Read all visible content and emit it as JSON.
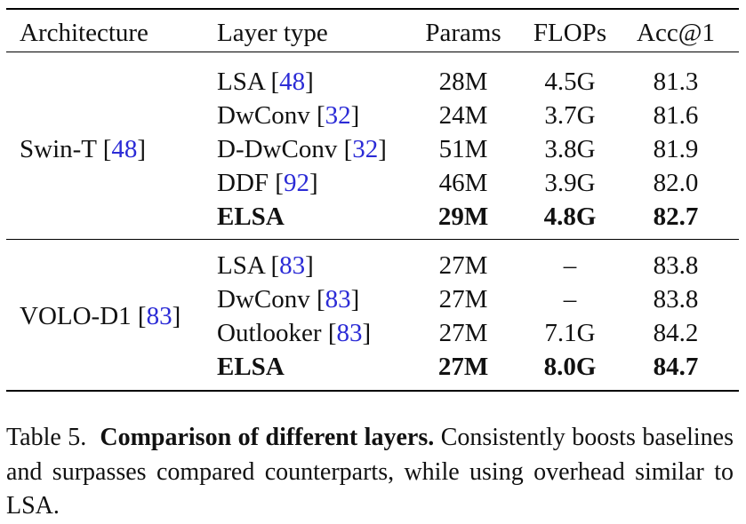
{
  "headers": {
    "architecture": "Architecture",
    "layer_type": "Layer type",
    "params": "Params",
    "flops": "FLOPs",
    "acc": "Acc@1"
  },
  "groups": [
    {
      "architecture": "Swin-T",
      "architecture_ref": "48",
      "rows": [
        {
          "layer": "LSA",
          "ref": "48",
          "params": "28M",
          "flops": "4.5G",
          "acc": "81.3",
          "bold": false
        },
        {
          "layer": "DwConv",
          "ref": "32",
          "params": "24M",
          "flops": "3.7G",
          "acc": "81.6",
          "bold": false
        },
        {
          "layer": "D-DwConv",
          "ref": "32",
          "params": "51M",
          "flops": "3.8G",
          "acc": "81.9",
          "bold": false
        },
        {
          "layer": "DDF",
          "ref": "92",
          "params": "46M",
          "flops": "3.9G",
          "acc": "82.0",
          "bold": false
        },
        {
          "layer": "ELSA",
          "ref": "",
          "params": "29M",
          "flops": "4.8G",
          "acc": "82.7",
          "bold": true
        }
      ]
    },
    {
      "architecture": "VOLO-D1",
      "architecture_ref": "83",
      "rows": [
        {
          "layer": "LSA",
          "ref": "83",
          "params": "27M",
          "flops": "–",
          "acc": "83.8",
          "bold": false
        },
        {
          "layer": "DwConv",
          "ref": "83",
          "params": "27M",
          "flops": "–",
          "acc": "83.8",
          "bold": false
        },
        {
          "layer": "Outlooker",
          "ref": "83",
          "params": "27M",
          "flops": "7.1G",
          "acc": "84.2",
          "bold": false
        },
        {
          "layer": "ELSA",
          "ref": "",
          "params": "27M",
          "flops": "8.0G",
          "acc": "84.7",
          "bold": true
        }
      ]
    }
  ],
  "caption": {
    "label": "Table 5.",
    "title": "Comparison of different layers.",
    "text": "Consistently boosts baselines and surpasses compared counterparts, while using over­head similar to LSA."
  }
}
